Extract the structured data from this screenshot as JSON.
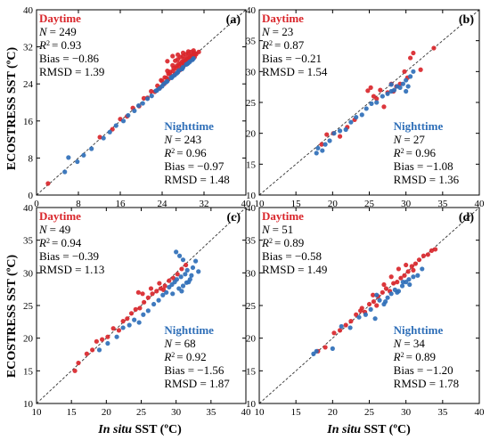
{
  "chart_data": [
    {
      "type": "scatter",
      "panel_label": "(a)",
      "xlim": [
        0,
        40
      ],
      "ylim": [
        0,
        40
      ],
      "xticks": [
        0,
        8,
        16,
        24,
        32,
        40
      ],
      "yticks": [
        0,
        8,
        16,
        24,
        32,
        40
      ],
      "x_tick_labels": [
        "0",
        "8",
        "16",
        "24",
        "32",
        "40"
      ],
      "y_tick_labels": [
        "0",
        "8",
        "16",
        "24",
        "32",
        "40"
      ],
      "one_to_one_line": true,
      "day_stats": {
        "title": "Daytime",
        "n_label": "N",
        "n_value": "= 249",
        "r2_label": "R",
        "r2_value": "= 0.93",
        "bias": "Bias = −0.86",
        "rmsd": "RMSD = 1.39"
      },
      "night_stats": {
        "title": "Nighttime",
        "n_label": "N",
        "n_value": "= 243",
        "r2_label": "R",
        "r2_value": "= 0.96",
        "bias": "Bias = −0.97",
        "rmsd": "RMSD = 1.48"
      },
      "series": [
        {
          "name": "Daytime",
          "color": "#d9262b",
          "x": [
            2.2,
            12.1,
            14.5,
            16.0,
            17.3,
            18.4,
            19.6,
            20.5,
            21.2,
            21.9,
            22.6,
            23.1,
            23.6,
            24.0,
            24.4,
            24.8,
            25.2,
            25.5,
            25.8,
            26.1,
            26.4,
            26.7,
            27.0,
            27.2,
            27.4,
            27.6,
            27.8,
            28.0,
            28.2,
            28.4,
            28.6,
            28.8,
            29.0,
            29.2,
            29.4,
            29.6,
            29.8,
            30.0,
            30.2,
            30.5,
            25.0,
            26.0,
            27.0,
            28.0,
            29.0,
            30.0,
            26.5,
            27.5,
            28.5,
            29.5,
            24.5,
            25.5,
            26.8,
            27.8,
            28.8,
            29.8,
            23.8,
            25.2,
            26.2,
            27.2,
            28.2,
            29.3,
            30.3,
            31.0,
            27.0,
            28.0,
            29.0,
            30.0,
            26.0,
            25.0
          ],
          "y": [
            2.5,
            12.5,
            14.2,
            16.4,
            17.0,
            18.8,
            19.2,
            20.9,
            21.0,
            22.4,
            22.3,
            23.6,
            23.2,
            24.6,
            24.0,
            25.3,
            25.0,
            26.1,
            25.5,
            26.8,
            26.0,
            27.4,
            26.6,
            27.9,
            27.0,
            28.3,
            27.5,
            28.6,
            28.0,
            29.0,
            28.4,
            29.3,
            28.8,
            29.6,
            29.1,
            29.9,
            29.4,
            30.1,
            29.8,
            30.4,
            26.8,
            28.0,
            29.3,
            30.0,
            30.6,
            30.8,
            29.0,
            29.8,
            30.4,
            30.9,
            25.4,
            26.6,
            27.9,
            28.8,
            29.6,
            30.2,
            24.8,
            26.2,
            27.4,
            28.4,
            29.3,
            30.0,
            30.6,
            30.9,
            30.3,
            30.7,
            31.0,
            31.2,
            30.0,
            28.9
          ]
        },
        {
          "name": "Nighttime",
          "color": "#2f6fb8",
          "x": [
            5.4,
            6.1,
            7.8,
            9.0,
            10.5,
            12.8,
            14.0,
            15.2,
            16.6,
            17.5,
            18.7,
            19.5,
            20.3,
            21.2,
            22.0,
            22.8,
            23.5,
            24.3,
            25.0,
            25.7,
            26.4,
            27.2,
            27.9,
            28.6,
            29.3,
            30.0,
            26.0,
            27.0,
            28.0,
            29.0,
            24.8,
            25.8,
            26.8,
            27.8,
            28.8,
            29.8,
            23.0,
            24.0
          ],
          "y": [
            5.0,
            8.1,
            7.2,
            8.6,
            10.0,
            12.3,
            13.6,
            15.0,
            16.0,
            17.2,
            18.2,
            19.3,
            19.8,
            20.8,
            21.4,
            22.5,
            23.0,
            24.0,
            24.6,
            25.4,
            25.9,
            26.9,
            27.4,
            28.2,
            28.8,
            29.5,
            25.6,
            26.5,
            27.6,
            28.5,
            24.4,
            25.3,
            26.3,
            27.2,
            28.3,
            29.2,
            22.6,
            23.5
          ]
        }
      ]
    },
    {
      "type": "scatter",
      "panel_label": "(b)",
      "xlim": [
        10,
        40
      ],
      "ylim": [
        10,
        40
      ],
      "xticks": [
        10,
        15,
        20,
        25,
        30,
        35,
        40
      ],
      "yticks": [
        10,
        15,
        20,
        25,
        30,
        35,
        40
      ],
      "x_tick_labels": [
        "10",
        "15",
        "20",
        "25",
        "30",
        "35",
        "40"
      ],
      "y_tick_labels": [
        "10",
        "15",
        "20",
        "25",
        "30",
        "35",
        "40"
      ],
      "one_to_one_line": true,
      "day_stats": {
        "title": "Daytime",
        "n_label": "N",
        "n_value": "= 23",
        "r2_label": "R",
        "r2_value": "= 0.87",
        "bias": "Bias = −0.21",
        "rmsd": "RMSD = 1.54"
      },
      "night_stats": {
        "title": "Nighttime",
        "n_label": "N",
        "n_value": "= 27",
        "r2_label": "R",
        "r2_value": "= 0.96",
        "bias": "Bias = −1.08",
        "rmsd": "RMSD = 1.36"
      },
      "series": [
        {
          "name": "Daytime",
          "color": "#d9262b",
          "x": [
            18.5,
            19.2,
            20.1,
            21.0,
            22.0,
            23.0,
            24.8,
            25.2,
            25.6,
            26.0,
            26.5,
            27.0,
            27.5,
            28.0,
            28.3,
            28.7,
            29.2,
            29.8,
            30.2,
            30.6,
            31.0,
            32.0,
            33.8
          ],
          "y": [
            18.2,
            19.8,
            20.0,
            19.5,
            21.0,
            22.2,
            26.9,
            27.4,
            26.0,
            25.6,
            27.0,
            24.3,
            26.6,
            28.0,
            26.8,
            27.6,
            28.0,
            30.0,
            29.0,
            32.2,
            33.0,
            30.3,
            33.8
          ]
        },
        {
          "name": "Nighttime",
          "color": "#2f6fb8",
          "x": [
            17.8,
            18.0,
            18.6,
            19.0,
            19.6,
            20.2,
            21.0,
            21.8,
            22.5,
            23.2,
            24.0,
            24.6,
            25.3,
            26.0,
            26.8,
            27.5,
            28.0,
            28.4,
            28.8,
            29.2,
            29.6,
            30.0,
            30.3,
            30.6,
            31.0,
            30.0,
            28.0
          ],
          "y": [
            16.8,
            17.6,
            17.2,
            18.2,
            18.8,
            20.0,
            20.4,
            20.6,
            21.8,
            22.6,
            23.0,
            24.0,
            24.8,
            25.0,
            26.0,
            26.4,
            26.8,
            27.0,
            27.6,
            27.4,
            28.0,
            28.6,
            27.6,
            29.2,
            30.0,
            26.8,
            27.9
          ]
        }
      ]
    },
    {
      "type": "scatter",
      "panel_label": "(c)",
      "xlim": [
        10,
        40
      ],
      "ylim": [
        10,
        40
      ],
      "xticks": [
        10,
        15,
        20,
        25,
        30,
        35,
        40
      ],
      "yticks": [
        10,
        15,
        20,
        25,
        30,
        35,
        40
      ],
      "x_tick_labels": [
        "10",
        "15",
        "20",
        "25",
        "30",
        "35",
        "40"
      ],
      "y_tick_labels": [
        "10",
        "15",
        "20",
        "25",
        "30",
        "35",
        "40"
      ],
      "one_to_one_line": true,
      "day_stats": {
        "title": "Daytime",
        "n_label": "N",
        "n_value": "= 49",
        "r2_label": "R",
        "r2_value": "= 0.94",
        "bias": "Bias = −0.39",
        "rmsd": "RMSD = 1.13"
      },
      "night_stats": {
        "title": "Nighttime",
        "n_label": "N",
        "n_value": "= 68",
        "r2_label": "R",
        "r2_value": "= 0.92",
        "bias": "Bias = −1.56",
        "rmsd": "RMSD = 1.87"
      },
      "series": [
        {
          "name": "Daytime",
          "color": "#d9262b",
          "x": [
            15.5,
            16.0,
            17.2,
            18.0,
            18.6,
            19.4,
            20.2,
            21.0,
            21.8,
            22.4,
            23.0,
            23.6,
            24.2,
            24.8,
            25.4,
            26.0,
            26.6,
            27.2,
            27.8,
            28.4,
            29.0,
            29.6,
            30.2,
            30.8,
            31.4,
            24.6,
            25.2,
            26.4,
            27.6,
            28.2
          ],
          "y": [
            15.0,
            16.2,
            17.6,
            18.2,
            19.5,
            19.8,
            20.2,
            21.5,
            21.2,
            22.6,
            23.0,
            23.8,
            24.4,
            24.6,
            25.5,
            26.2,
            26.8,
            27.2,
            27.6,
            28.0,
            28.8,
            29.2,
            29.8,
            30.6,
            31.2,
            27.0,
            26.8,
            27.6,
            28.4,
            27.4
          ]
        },
        {
          "name": "Nighttime",
          "color": "#2f6fb8",
          "x": [
            19.0,
            20.2,
            21.5,
            22.4,
            23.3,
            24.0,
            24.7,
            25.3,
            26.0,
            26.8,
            27.5,
            28.1,
            28.6,
            29.0,
            29.4,
            29.8,
            30.1,
            30.4,
            30.7,
            31.0,
            31.3,
            31.6,
            32.0,
            32.4,
            32.8,
            33.2,
            30.0,
            30.5,
            31.0,
            31.5,
            29.5,
            30.8,
            31.8,
            32.2
          ],
          "y": [
            18.2,
            19.2,
            20.2,
            21.6,
            22.0,
            22.8,
            22.4,
            23.6,
            24.2,
            25.2,
            25.8,
            26.6,
            27.0,
            27.8,
            28.2,
            28.6,
            29.0,
            27.6,
            29.4,
            28.0,
            29.8,
            30.4,
            29.0,
            30.8,
            31.8,
            30.2,
            33.2,
            32.6,
            32.0,
            28.5,
            26.8,
            27.2,
            28.6,
            29.6
          ]
        }
      ]
    },
    {
      "type": "scatter",
      "panel_label": "(d)",
      "xlim": [
        10,
        40
      ],
      "ylim": [
        10,
        40
      ],
      "xticks": [
        10,
        15,
        20,
        25,
        30,
        35,
        40
      ],
      "yticks": [
        10,
        15,
        20,
        25,
        30,
        35,
        40
      ],
      "x_tick_labels": [
        "10",
        "15",
        "20",
        "25",
        "30",
        "35",
        "40"
      ],
      "y_tick_labels": [
        "10",
        "15",
        "20",
        "25",
        "30",
        "35",
        "40"
      ],
      "one_to_one_line": true,
      "day_stats": {
        "title": "Daytime",
        "n_label": "N",
        "n_value": "= 51",
        "r2_label": "R",
        "r2_value": "= 0.89",
        "bias": "Bias = −0.58",
        "rmsd": "RMSD = 1.49"
      },
      "night_stats": {
        "title": "Nighttime",
        "n_label": "N",
        "n_value": "= 34",
        "r2_label": "R",
        "r2_value": "= 0.89",
        "bias": "Bias = −1.20",
        "rmsd": "RMSD = 1.78"
      },
      "series": [
        {
          "name": "Daytime",
          "color": "#d9262b",
          "x": [
            18.0,
            19.0,
            20.2,
            21.0,
            21.8,
            22.5,
            23.2,
            23.8,
            24.4,
            25.0,
            25.6,
            26.2,
            26.8,
            27.3,
            27.8,
            28.3,
            28.8,
            29.3,
            29.8,
            30.3,
            30.8,
            31.3,
            31.8,
            32.4,
            33.0,
            33.5,
            34.0,
            26.0,
            27.0,
            28.0,
            29.0,
            30.0,
            31.0,
            24.0,
            25.5
          ],
          "y": [
            18.0,
            18.6,
            20.8,
            21.2,
            22.0,
            22.6,
            23.6,
            24.2,
            24.0,
            25.2,
            25.6,
            26.4,
            27.0,
            27.6,
            27.2,
            28.4,
            28.6,
            29.2,
            29.6,
            30.2,
            31.0,
            31.4,
            32.0,
            32.6,
            32.8,
            33.4,
            33.6,
            25.0,
            28.2,
            29.4,
            30.6,
            31.2,
            30.4,
            24.6,
            26.6
          ]
        },
        {
          "name": "Nighttime",
          "color": "#2f6fb8",
          "x": [
            17.4,
            17.8,
            20.0,
            21.2,
            22.4,
            23.6,
            24.5,
            25.2,
            25.8,
            26.4,
            27.0,
            27.5,
            28.0,
            28.5,
            29.0,
            29.5,
            30.0,
            30.5,
            31.0,
            31.6,
            32.2,
            26.0,
            27.2,
            28.8,
            29.6,
            30.4
          ],
          "y": [
            17.6,
            18.0,
            18.4,
            21.8,
            21.6,
            23.2,
            23.6,
            24.4,
            23.0,
            25.8,
            25.2,
            26.2,
            26.8,
            27.4,
            27.2,
            28.0,
            28.6,
            28.2,
            29.4,
            29.6,
            30.6,
            26.6,
            25.6,
            27.0,
            28.6,
            29.0
          ]
        }
      ]
    }
  ],
  "axis_titles": {
    "y_main": "ECOSTRESS SST (ºC)",
    "x_italic": "In situ",
    "x_rest": " SST (ºC)"
  },
  "colors": {
    "daytime": "#d9262b",
    "nighttime": "#2f6fb8",
    "one_to_one": "#333333"
  }
}
